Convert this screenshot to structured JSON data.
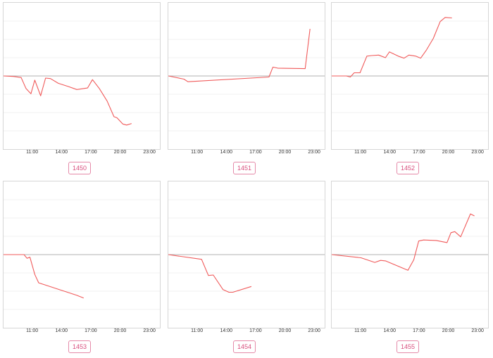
{
  "colors": {
    "line": "#f05a5a",
    "baseline": "#b0b0b0",
    "grid": "#ececec",
    "badge_border": "#e58aa9",
    "badge_text": "#d94f7e"
  },
  "x_ticks": [
    "11:00",
    "14:00",
    "17:00",
    "20:00",
    "23:00"
  ],
  "panels": [
    {
      "id": "1450",
      "label": "1450",
      "points": [
        [
          8,
          0
        ],
        [
          9,
          -0.05
        ],
        [
          9.8,
          -0.15
        ],
        [
          10.3,
          -1.2
        ],
        [
          10.8,
          -1.7
        ],
        [
          11.2,
          -0.4
        ],
        [
          11.8,
          -1.9
        ],
        [
          12.3,
          -0.2
        ],
        [
          12.8,
          -0.25
        ],
        [
          13.6,
          -0.7
        ],
        [
          14.6,
          -1.0
        ],
        [
          15.5,
          -1.3
        ],
        [
          16.6,
          -1.15
        ],
        [
          17.1,
          -0.35
        ],
        [
          17.8,
          -1.2
        ],
        [
          18.6,
          -2.4
        ],
        [
          19.3,
          -3.9
        ],
        [
          19.6,
          -4.0
        ],
        [
          20.2,
          -4.6
        ],
        [
          20.6,
          -4.7
        ],
        [
          21.1,
          -4.55
        ]
      ]
    },
    {
      "id": "1451",
      "label": "1451",
      "points": [
        [
          8,
          0
        ],
        [
          9.6,
          -0.3
        ],
        [
          10,
          -0.55
        ],
        [
          18.3,
          -0.1
        ],
        [
          18.7,
          0.85
        ],
        [
          19.2,
          0.75
        ],
        [
          22,
          0.7
        ],
        [
          22.5,
          4.5
        ]
      ]
    },
    {
      "id": "1452",
      "label": "1452",
      "points": [
        [
          8,
          0
        ],
        [
          9.5,
          0
        ],
        [
          9.9,
          -0.1
        ],
        [
          10.3,
          0.3
        ],
        [
          10.9,
          0.3
        ],
        [
          11.6,
          1.9
        ],
        [
          12.1,
          1.95
        ],
        [
          12.8,
          2.0
        ],
        [
          13.5,
          1.75
        ],
        [
          13.9,
          2.3
        ],
        [
          14.8,
          1.9
        ],
        [
          15.4,
          1.7
        ],
        [
          15.9,
          2.0
        ],
        [
          16.6,
          1.9
        ],
        [
          17.1,
          1.7
        ],
        [
          17.7,
          2.5
        ],
        [
          18.4,
          3.6
        ],
        [
          19.1,
          5.2
        ],
        [
          19.6,
          5.6
        ],
        [
          20.3,
          5.55
        ]
      ]
    },
    {
      "id": "1453",
      "label": "1453",
      "points": [
        [
          8,
          0
        ],
        [
          10.1,
          0
        ],
        [
          10.4,
          -0.35
        ],
        [
          10.7,
          -0.25
        ],
        [
          11.2,
          -1.9
        ],
        [
          11.6,
          -2.7
        ],
        [
          15.5,
          -3.9
        ],
        [
          16.2,
          -4.15
        ]
      ]
    },
    {
      "id": "1454",
      "label": "1454",
      "points": [
        [
          8,
          0
        ],
        [
          11.4,
          -0.45
        ],
        [
          12.1,
          -2.0
        ],
        [
          12.6,
          -1.95
        ],
        [
          13.6,
          -3.35
        ],
        [
          14.2,
          -3.6
        ],
        [
          14.6,
          -3.6
        ],
        [
          16.5,
          -3.05
        ]
      ]
    },
    {
      "id": "1455",
      "label": "1455",
      "points": [
        [
          8,
          0
        ],
        [
          11,
          -0.3
        ],
        [
          12.4,
          -0.75
        ],
        [
          13,
          -0.55
        ],
        [
          13.5,
          -0.6
        ],
        [
          15.8,
          -1.5
        ],
        [
          16.4,
          -0.5
        ],
        [
          16.9,
          1.3
        ],
        [
          17.4,
          1.4
        ],
        [
          18.7,
          1.35
        ],
        [
          19.8,
          1.15
        ],
        [
          20.2,
          2.1
        ],
        [
          20.6,
          2.2
        ],
        [
          21.2,
          1.7
        ],
        [
          22.2,
          3.9
        ],
        [
          22.6,
          3.7
        ]
      ]
    }
  ]
}
